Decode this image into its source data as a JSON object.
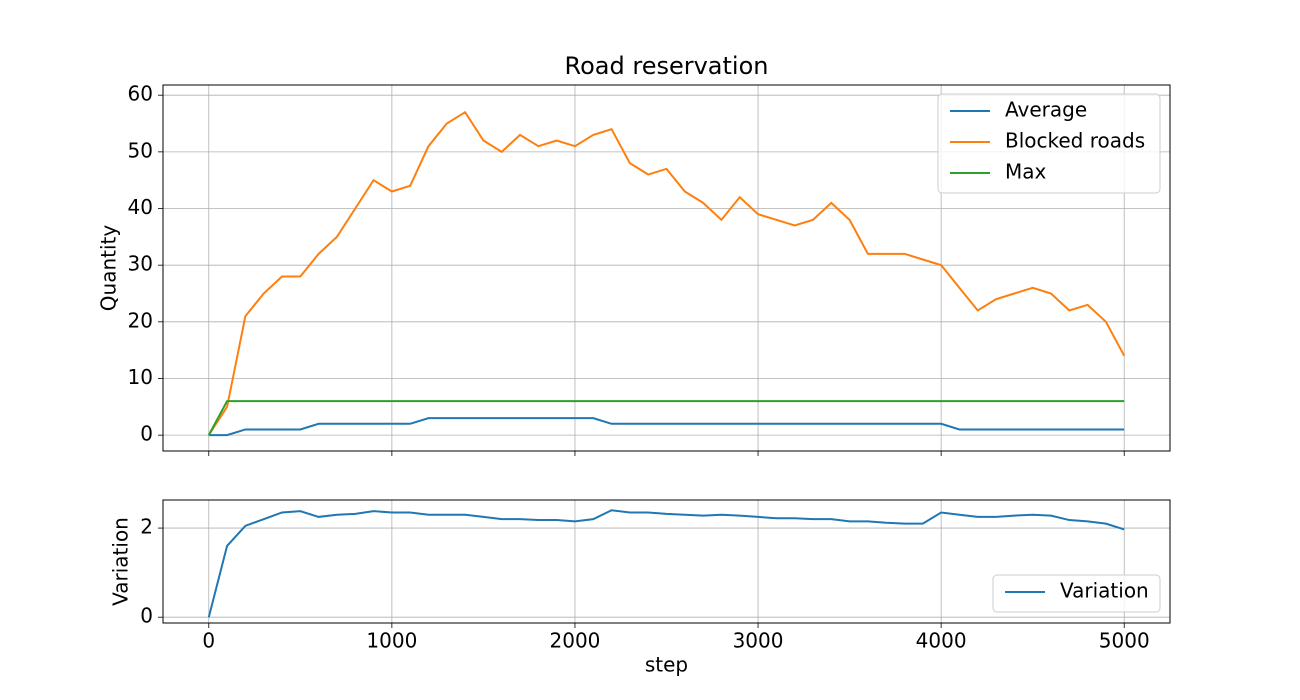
{
  "chart_data": [
    {
      "type": "line",
      "title": "Road reservation",
      "ylabel": "Quantity",
      "x": [
        0,
        100,
        200,
        300,
        400,
        500,
        600,
        700,
        800,
        900,
        1000,
        1100,
        1200,
        1300,
        1400,
        1500,
        1600,
        1700,
        1800,
        1900,
        2000,
        2100,
        2200,
        2300,
        2400,
        2500,
        2600,
        2700,
        2800,
        2900,
        3000,
        3100,
        3200,
        3300,
        3400,
        3500,
        3600,
        3700,
        3800,
        3900,
        4000,
        4100,
        4200,
        4300,
        4400,
        4500,
        4600,
        4700,
        4800,
        4900,
        5000
      ],
      "series": [
        {
          "name": "Average",
          "color": "#1f77b4",
          "values": [
            0,
            0,
            1,
            1,
            1,
            1,
            2,
            2,
            2,
            2,
            2,
            2,
            3,
            3,
            3,
            3,
            3,
            3,
            3,
            3,
            3,
            3,
            2,
            2,
            2,
            2,
            2,
            2,
            2,
            2,
            2,
            2,
            2,
            2,
            2,
            2,
            2,
            2,
            2,
            2,
            2,
            1,
            1,
            1,
            1,
            1,
            1,
            1,
            1,
            1,
            1
          ]
        },
        {
          "name": "Blocked roads",
          "color": "#ff7f0e",
          "values": [
            0,
            5,
            21,
            25,
            28,
            28,
            32,
            35,
            40,
            45,
            43,
            44,
            51,
            55,
            57,
            52,
            50,
            53,
            51,
            52,
            51,
            53,
            54,
            48,
            46,
            47,
            43,
            41,
            38,
            42,
            39,
            38,
            37,
            38,
            41,
            38,
            32,
            32,
            32,
            31,
            30,
            26,
            22,
            24,
            25,
            26,
            25,
            22,
            23,
            20,
            14
          ]
        },
        {
          "name": "Max",
          "color": "#2ca02c",
          "values": [
            0,
            6,
            6,
            6,
            6,
            6,
            6,
            6,
            6,
            6,
            6,
            6,
            6,
            6,
            6,
            6,
            6,
            6,
            6,
            6,
            6,
            6,
            6,
            6,
            6,
            6,
            6,
            6,
            6,
            6,
            6,
            6,
            6,
            6,
            6,
            6,
            6,
            6,
            6,
            6,
            6,
            6,
            6,
            6,
            6,
            6,
            6,
            6,
            6,
            6,
            6
          ]
        }
      ],
      "xlim": [
        -250,
        5250
      ],
      "xticks": [
        0,
        1000,
        2000,
        3000,
        4000,
        5000
      ],
      "ylim": [
        -2.8,
        61.8
      ],
      "yticks": [
        0,
        10,
        20,
        30,
        40,
        50,
        60
      ],
      "grid": true,
      "legend": "upper right"
    },
    {
      "type": "line",
      "ylabel": "Variation",
      "xlabel": "step",
      "x": [
        0,
        100,
        200,
        300,
        400,
        500,
        600,
        700,
        800,
        900,
        1000,
        1100,
        1200,
        1300,
        1400,
        1500,
        1600,
        1700,
        1800,
        1900,
        2000,
        2100,
        2200,
        2300,
        2400,
        2500,
        2600,
        2700,
        2800,
        2900,
        3000,
        3100,
        3200,
        3300,
        3400,
        3500,
        3600,
        3700,
        3800,
        3900,
        4000,
        4100,
        4200,
        4300,
        4400,
        4500,
        4600,
        4700,
        4800,
        4900,
        5000
      ],
      "series": [
        {
          "name": "Variation",
          "color": "#1f77b4",
          "values": [
            0,
            1.6,
            2.05,
            2.2,
            2.35,
            2.38,
            2.25,
            2.3,
            2.32,
            2.38,
            2.35,
            2.35,
            2.3,
            2.3,
            2.3,
            2.25,
            2.2,
            2.2,
            2.18,
            2.18,
            2.15,
            2.2,
            2.4,
            2.35,
            2.35,
            2.32,
            2.3,
            2.28,
            2.3,
            2.28,
            2.25,
            2.22,
            2.22,
            2.2,
            2.2,
            2.15,
            2.15,
            2.12,
            2.1,
            2.1,
            2.35,
            2.3,
            2.25,
            2.25,
            2.28,
            2.3,
            2.28,
            2.18,
            2.15,
            2.1,
            1.97
          ]
        }
      ],
      "xlim": [
        -250,
        5250
      ],
      "xticks": [
        0,
        1000,
        2000,
        3000,
        4000,
        5000
      ],
      "ylim": [
        -0.13,
        2.63
      ],
      "yticks": [
        0,
        2
      ],
      "grid": true,
      "legend": "lower right"
    }
  ]
}
